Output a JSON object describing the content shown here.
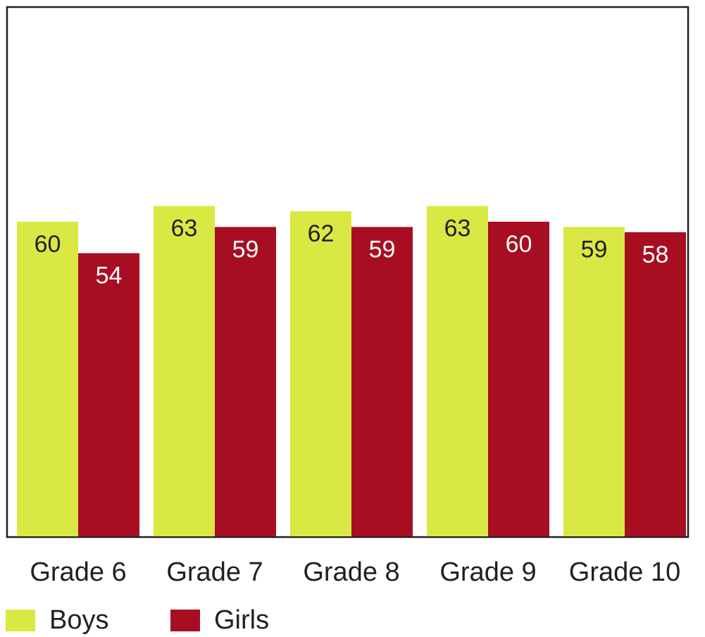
{
  "chart_data": {
    "type": "bar",
    "categories": [
      "Grade 6",
      "Grade 7",
      "Grade 8",
      "Grade 9",
      "Grade 10"
    ],
    "series": [
      {
        "name": "Boys",
        "values": [
          60,
          63,
          62,
          63,
          59
        ],
        "color": "#d9e843"
      },
      {
        "name": "Girls",
        "values": [
          54,
          59,
          59,
          60,
          58
        ],
        "color": "#a80e22"
      }
    ],
    "ylim": [
      0,
      100
    ],
    "grid": false,
    "legend_position": "bottom-left",
    "title": "",
    "xlabel": "",
    "ylabel": ""
  }
}
